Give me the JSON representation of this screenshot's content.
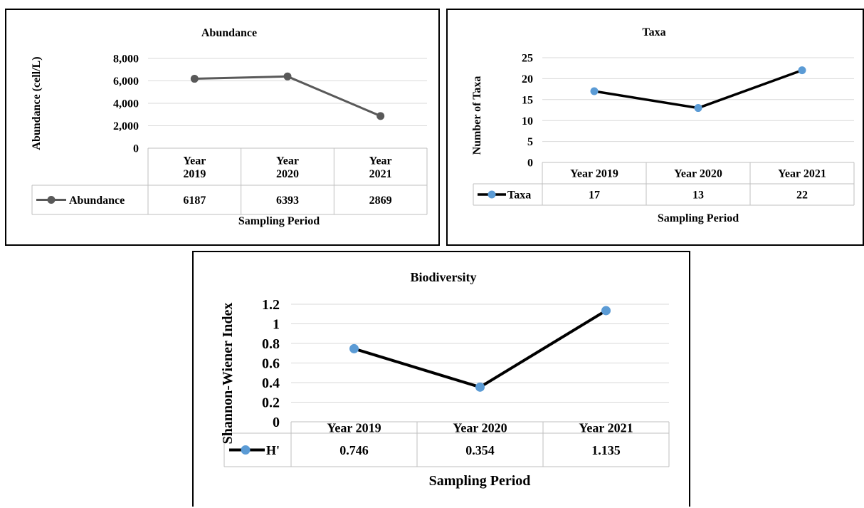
{
  "chart_data": [
    {
      "type": "line",
      "title": "Abundance",
      "xlabel": "Sampling Period",
      "ylabel": "Abundance (cell/L)",
      "categories": [
        [
          "Year",
          "2019"
        ],
        [
          "Year",
          "2020"
        ],
        [
          "Year",
          "2021"
        ]
      ],
      "yticks": [
        "0",
        "2,000",
        "4,000",
        "6,000",
        "8,000"
      ],
      "ylim": [
        0,
        8000
      ],
      "grid": true,
      "legend": "data-table",
      "colors": {
        "line": "#595959",
        "marker": "#595959"
      },
      "series": [
        {
          "name": "Abundance",
          "values": [
            6187,
            6393,
            2869
          ],
          "labels": [
            "6187",
            "6393",
            "2869"
          ]
        }
      ]
    },
    {
      "type": "line",
      "title": "Taxa",
      "xlabel": "Sampling Period",
      "ylabel": "Number of Taxa",
      "categories": [
        [
          "Year 2019"
        ],
        [
          "Year 2020"
        ],
        [
          "Year 2021"
        ]
      ],
      "yticks": [
        "0",
        "5",
        "10",
        "15",
        "20",
        "25"
      ],
      "ylim": [
        0,
        25
      ],
      "grid": true,
      "legend": "data-table",
      "colors": {
        "line": "#000000",
        "marker": "#5B9BD5"
      },
      "series": [
        {
          "name": "Taxa",
          "values": [
            17,
            13,
            22
          ],
          "labels": [
            "17",
            "13",
            "22"
          ]
        }
      ]
    },
    {
      "type": "line",
      "title": "Biodiversity",
      "xlabel": "Sampling Period",
      "ylabel": "Shannon-Wiener Index",
      "categories": [
        [
          "Year 2019"
        ],
        [
          "Year 2020"
        ],
        [
          "Year 2021"
        ]
      ],
      "yticks": [
        "0",
        "0.2",
        "0.4",
        "0.6",
        "0.8",
        "1",
        "1.2"
      ],
      "ylim": [
        0,
        1.2
      ],
      "grid": true,
      "legend": "data-table",
      "colors": {
        "line": "#000000",
        "marker": "#5B9BD5"
      },
      "series": [
        {
          "name": "H'",
          "values": [
            0.746,
            0.354,
            1.135
          ],
          "labels": [
            "0.746",
            "0.354",
            "1.135"
          ]
        }
      ]
    }
  ]
}
